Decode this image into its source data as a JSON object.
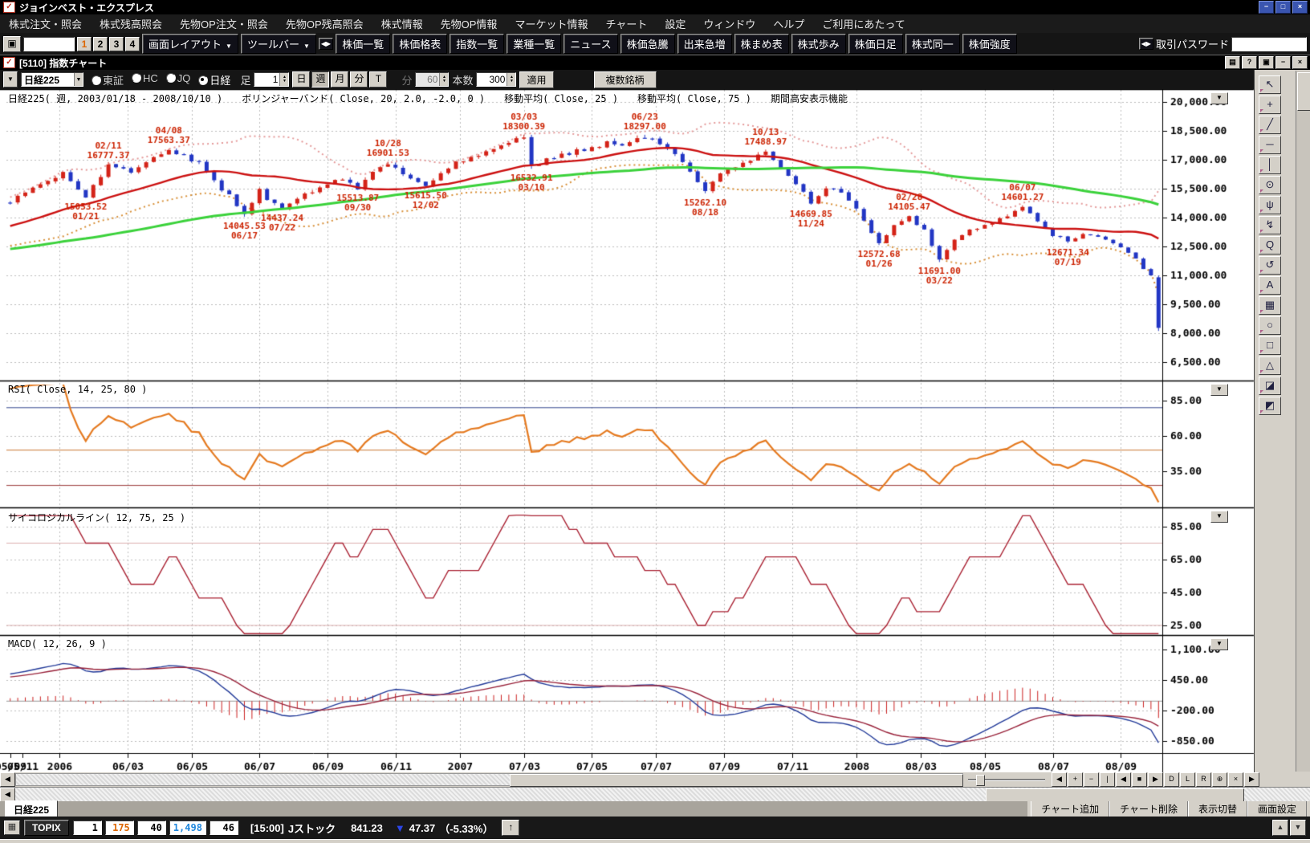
{
  "window": {
    "title": "ジョインベスト・エクスプレス",
    "controls": [
      "−",
      "□",
      "×"
    ]
  },
  "menu": {
    "items": [
      "株式注文・照会",
      "株式残高照会",
      "先物OP注文・照会",
      "先物OP残高照会",
      "株式情報",
      "先物OP情報",
      "マーケット情報",
      "チャート",
      "設定",
      "ウィンドウ",
      "ヘルプ",
      "ご利用にあたって"
    ]
  },
  "toolbar": {
    "window_switch_icon": "▣",
    "page_numbers": [
      "1",
      "2",
      "3",
      "4"
    ],
    "active_page": "1",
    "layout_button": "画面レイアウト",
    "toolbar_button": "ツールバー",
    "splitter_icon": "◀▶",
    "quick_buttons": [
      "株価一覧",
      "株価格表",
      "指数一覧",
      "業種一覧",
      "ニュース",
      "株価急騰",
      "出来急増",
      "株まめ表",
      "株式歩み",
      "株価日足",
      "株式同一",
      "株価強度"
    ],
    "password_label": "取引パスワード"
  },
  "chart_window": {
    "title": "[5110] 指数チャート",
    "titlebar_buttons": [
      "▤",
      "?",
      "▣",
      "−",
      "×"
    ],
    "symbol_select": "日経225",
    "market_radios": [
      {
        "label": "東証",
        "selected": false
      },
      {
        "label": "HC",
        "selected": false
      },
      {
        "label": "JQ",
        "selected": false
      },
      {
        "label": "日経",
        "selected": true
      }
    ],
    "bar_label": "足",
    "bar_value": "1",
    "period_buttons": [
      "日",
      "週",
      "月",
      "分",
      "T"
    ],
    "selected_period": "週",
    "minute_label": "分",
    "minute_value": "60",
    "count_label": "本数",
    "count_value": "300",
    "apply_button": "適用",
    "multi_symbol_button": "複数銘柄",
    "panel_dropdown_icon": "▼"
  },
  "drawing_tools": [
    {
      "name": "cursor",
      "glyph": "↖"
    },
    {
      "name": "crosshair",
      "glyph": "+"
    },
    {
      "name": "trend-line",
      "glyph": "╱"
    },
    {
      "name": "horizontal-line",
      "glyph": "─"
    },
    {
      "name": "vertical-line",
      "glyph": "│"
    },
    {
      "name": "alert",
      "glyph": "⊙"
    },
    {
      "name": "pitchfork",
      "glyph": "ψ"
    },
    {
      "name": "zigzag",
      "glyph": "↯"
    },
    {
      "name": "quote",
      "glyph": "Q"
    },
    {
      "name": "cycle",
      "glyph": "↺"
    },
    {
      "name": "text",
      "glyph": "A"
    },
    {
      "name": "grid",
      "glyph": "▦"
    },
    {
      "name": "ellipse",
      "glyph": "○"
    },
    {
      "name": "rectangle",
      "glyph": "□"
    },
    {
      "name": "triangle",
      "glyph": "△"
    },
    {
      "name": "eraser",
      "glyph": "◪"
    },
    {
      "name": "text-eraser",
      "glyph": "◩"
    }
  ],
  "chart_data": {
    "type": "candlestick",
    "symbol_header": "日経225( 週, 2003/01/18 - 2008/10/10 )",
    "overlays_header": [
      "ボリンジャーバンド( Close, 20, 2.0, -2.0, 0 )",
      "移動平均( Close, 25 )",
      "移動平均( Close, 75 )",
      "期間高安表示機能"
    ],
    "weeks": 153,
    "y_axis": {
      "labels": [
        "20,000.00",
        "18,500.00",
        "17,000.00",
        "15,500.00",
        "14,000.00",
        "12,500.00",
        "11,000.00",
        "9,500.00",
        "8,000.00",
        "6,500.00"
      ],
      "values": [
        20000,
        18500,
        17000,
        15500,
        14000,
        12500,
        11000,
        9500,
        8000,
        6500
      ]
    },
    "x_ticks": [
      {
        "label": "05/09",
        "week": 0,
        "grid": false
      },
      {
        "label": "05/11",
        "week": 1.6,
        "grid": false
      },
      {
        "label": "2006",
        "week": 6.5,
        "grid": true
      },
      {
        "label": "06/03",
        "week": 15.5,
        "grid": true
      },
      {
        "label": "06/05",
        "week": 24,
        "grid": true
      },
      {
        "label": "06/07",
        "week": 33,
        "grid": true
      },
      {
        "label": "06/09",
        "week": 42,
        "grid": true
      },
      {
        "label": "06/11",
        "week": 51,
        "grid": true
      },
      {
        "label": "2007",
        "week": 59.5,
        "grid": true
      },
      {
        "label": "07/03",
        "week": 68,
        "grid": true
      },
      {
        "label": "07/05",
        "week": 77,
        "grid": true
      },
      {
        "label": "07/07",
        "week": 85.5,
        "grid": true
      },
      {
        "label": "07/09",
        "week": 94.5,
        "grid": true
      },
      {
        "label": "07/11",
        "week": 103.5,
        "grid": true
      },
      {
        "label": "2008",
        "week": 112,
        "grid": true
      },
      {
        "label": "08/03",
        "week": 120.5,
        "grid": true
      },
      {
        "label": "08/05",
        "week": 129,
        "grid": true
      },
      {
        "label": "08/07",
        "week": 138,
        "grid": true
      },
      {
        "label": "08/09",
        "week": 147,
        "grid": true
      }
    ],
    "history_anchors": [
      [
        -75,
        11600
      ],
      [
        -60,
        11500
      ],
      [
        -45,
        11750
      ],
      [
        -30,
        12150
      ],
      [
        -20,
        12750
      ],
      [
        -12,
        13450
      ],
      [
        -6,
        14250
      ],
      [
        -1,
        14700
      ]
    ],
    "anchors": [
      [
        0,
        14850
      ],
      [
        4,
        15700
      ],
      [
        7,
        16350
      ],
      [
        10,
        15053
      ],
      [
        13,
        16777
      ],
      [
        16,
        16350
      ],
      [
        18,
        16950
      ],
      [
        21,
        17450
      ],
      [
        23,
        17150
      ],
      [
        25,
        16900
      ],
      [
        27,
        15850
      ],
      [
        29,
        15150
      ],
      [
        31,
        14100
      ],
      [
        33,
        15400
      ],
      [
        34,
        15000
      ],
      [
        36,
        14500
      ],
      [
        39,
        15250
      ],
      [
        42,
        15700
      ],
      [
        44,
        16050
      ],
      [
        46,
        15560
      ],
      [
        48,
        16350
      ],
      [
        50,
        16820
      ],
      [
        52,
        16250
      ],
      [
        55,
        15660
      ],
      [
        57,
        16300
      ],
      [
        59,
        16900
      ],
      [
        62,
        17250
      ],
      [
        65,
        17700
      ],
      [
        68,
        18220
      ],
      [
        69,
        16600
      ],
      [
        71,
        17000
      ],
      [
        74,
        17350
      ],
      [
        77,
        17650
      ],
      [
        79,
        17900
      ],
      [
        81,
        17750
      ],
      [
        84,
        18200
      ],
      [
        86,
        17900
      ],
      [
        88,
        17300
      ],
      [
        90,
        16400
      ],
      [
        92,
        15350
      ],
      [
        94,
        16250
      ],
      [
        96,
        16600
      ],
      [
        98,
        16950
      ],
      [
        100,
        17400
      ],
      [
        102,
        16600
      ],
      [
        104,
        15800
      ],
      [
        106,
        14750
      ],
      [
        108,
        15550
      ],
      [
        110,
        15300
      ],
      [
        112,
        14450
      ],
      [
        115,
        12650
      ],
      [
        117,
        13600
      ],
      [
        119,
        14050
      ],
      [
        121,
        13300
      ],
      [
        123,
        11750
      ],
      [
        125,
        12850
      ],
      [
        127,
        13350
      ],
      [
        130,
        13800
      ],
      [
        132,
        14150
      ],
      [
        134,
        14520
      ],
      [
        136,
        13850
      ],
      [
        138,
        13100
      ],
      [
        140,
        12750
      ],
      [
        142,
        13150
      ],
      [
        144,
        13000
      ],
      [
        146,
        12650
      ],
      [
        148,
        12200
      ],
      [
        149,
        11900
      ],
      [
        150,
        11400
      ],
      [
        151,
        11000
      ],
      [
        152,
        8276
      ]
    ],
    "final_candle": {
      "open": 10900,
      "high": 11000,
      "low": 8115,
      "close": 8276
    },
    "annotations": [
      {
        "date": "01/21",
        "value": 15053.52,
        "week": 10,
        "side": "low"
      },
      {
        "date": "02/11",
        "value": 16777.37,
        "week": 13,
        "side": "high"
      },
      {
        "date": "04/08",
        "value": 17563.37,
        "week": 21,
        "side": "high"
      },
      {
        "date": "06/17",
        "value": 14045.53,
        "week": 31,
        "side": "low"
      },
      {
        "date": "07/22",
        "value": 14437.24,
        "week": 36,
        "side": "low"
      },
      {
        "date": "09/30",
        "value": 15513.87,
        "week": 46,
        "side": "low"
      },
      {
        "date": "10/28",
        "value": 16901.53,
        "week": 50,
        "side": "high"
      },
      {
        "date": "12/02",
        "value": 15615.5,
        "week": 55,
        "side": "low"
      },
      {
        "date": "03/03",
        "value": 18300.39,
        "week": 68,
        "side": "high"
      },
      {
        "date": "03/10",
        "value": 16532.91,
        "week": 69,
        "side": "low"
      },
      {
        "date": "06/23",
        "value": 18297.0,
        "week": 84,
        "side": "high"
      },
      {
        "date": "08/18",
        "value": 15262.1,
        "week": 92,
        "side": "low"
      },
      {
        "date": "10/13",
        "value": 17488.97,
        "week": 100,
        "side": "high"
      },
      {
        "date": "11/24",
        "value": 14669.85,
        "week": 106,
        "side": "low"
      },
      {
        "date": "01/26",
        "value": 12572.68,
        "week": 115,
        "side": "low"
      },
      {
        "date": "02/28",
        "value": 14105.47,
        "week": 119,
        "side": "high"
      },
      {
        "date": "03/22",
        "value": 11691.0,
        "week": 123,
        "side": "low"
      },
      {
        "date": "06/07",
        "value": 14601.27,
        "week": 134,
        "side": "high"
      },
      {
        "date": "07/19",
        "value": 12671.34,
        "week": 140,
        "side": "low"
      }
    ],
    "panels": [
      {
        "id": "rsi",
        "header": "RSI( Close, 14, 25, 80 )",
        "y_labels": [
          "85.00",
          "60.00",
          "35.00"
        ],
        "y_values": [
          85,
          60,
          35
        ],
        "ref_lines": [
          {
            "v": 80,
            "color": "#35498f"
          },
          {
            "v": 50,
            "color": "#cc7733"
          },
          {
            "v": 25,
            "color": "#993333"
          }
        ]
      },
      {
        "id": "psych",
        "header": "サイコロジカルライン( 12, 75, 25 )",
        "y_labels": [
          "85.00",
          "65.00",
          "45.00",
          "25.00"
        ],
        "y_values": [
          85,
          65,
          45,
          25
        ],
        "ref_lines": [
          {
            "v": 75,
            "color": "#ddb0b0"
          },
          {
            "v": 25,
            "color": "#ddb0b0"
          }
        ]
      },
      {
        "id": "macd",
        "header": "MACD( 12, 26, 9 )",
        "y_labels": [
          "1,100.00",
          "450.00",
          "-200.00",
          "-850.00"
        ],
        "y_values": [
          1100,
          450,
          -200,
          -850
        ],
        "ref_lines": [
          {
            "v": 0,
            "color": "#999999"
          }
        ]
      }
    ],
    "indicator_params": {
      "rsi": [
        14,
        25,
        80
      ],
      "psych": [
        12,
        75,
        25
      ],
      "macd": [
        12,
        26,
        9
      ],
      "bollinger": [
        20,
        2.0,
        -2.0,
        0
      ],
      "ma": [
        25,
        75
      ]
    },
    "colors": {
      "up_candle": "#d42318",
      "down_candle": "#2236c4",
      "ma25": "#cc1111",
      "ma75": "#3bd23b",
      "boll_upper": "#e59a9a",
      "boll_lower": "#d89038",
      "annotation": "#cc2200",
      "rsi_line": "#e57a20",
      "psych_line": "#aa2233",
      "macd_line": "#223a99",
      "signal_line": "#99223a",
      "hist": "#cc2222",
      "grid": "#bdbdbd",
      "axis_text": "#000000"
    }
  },
  "bottom_bar": {
    "scroll_left_arrow": "◀",
    "scroll_buttons": [
      "◀",
      "+",
      "−",
      "|",
      "◀",
      "■",
      "▶",
      "D",
      "L",
      "R",
      "⊕",
      "×",
      "▶"
    ],
    "tab": "日経225",
    "buttons": [
      "チャート追加",
      "チャート削除",
      "表示切替",
      "画面設定"
    ]
  },
  "status_bar": {
    "app_icon": "▦",
    "index_button": "TOPIX",
    "boxes": [
      {
        "text": "1",
        "color": "#000000"
      },
      {
        "text": "175",
        "color": "#dd6600"
      },
      {
        "text": "40",
        "color": "#000000"
      },
      {
        "text": "1,498",
        "color": "#2288dd"
      },
      {
        "text": "46",
        "color": "#000000"
      }
    ],
    "time": "[15:00]",
    "market_name": "Jストック",
    "price": "841.23",
    "down_arrow": "▼",
    "change": "47.37",
    "change_pct": "（-5.33%）",
    "up_button": "↑",
    "corner_buttons": [
      "▲",
      "▼"
    ]
  }
}
